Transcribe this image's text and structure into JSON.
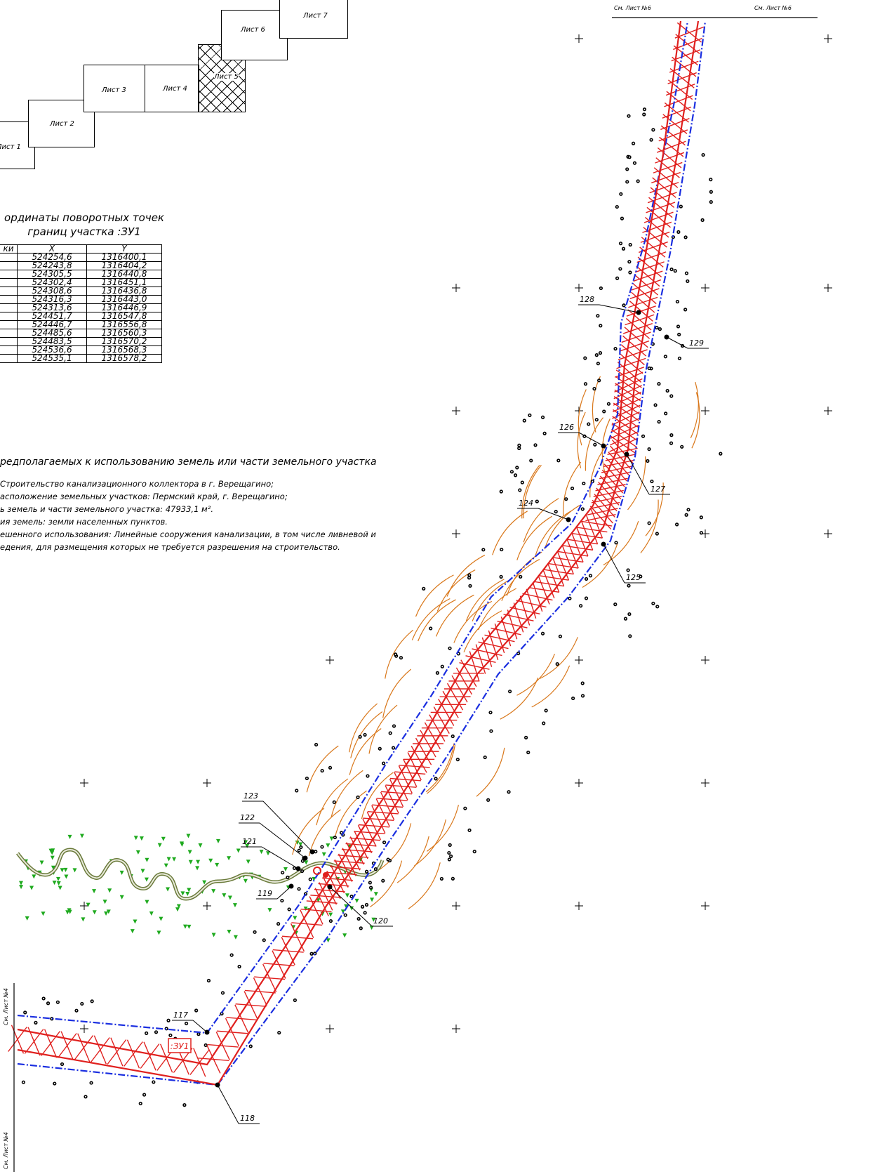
{
  "sheets": [
    {
      "label": "Лист 1"
    },
    {
      "label": "Лист 2"
    },
    {
      "label": "Лист 3"
    },
    {
      "label": "Лист 4"
    },
    {
      "label": "Лист 5"
    },
    {
      "label": "Лист 6"
    },
    {
      "label": "Лист 7"
    }
  ],
  "coords": {
    "title_line1": "ординаты поворотных точек",
    "title_line2": "границ участка :ЗУ1",
    "columns": [
      "ки",
      "X",
      "Y"
    ],
    "rows": [
      [
        "",
        "524254,6",
        "1316400,1"
      ],
      [
        "",
        "524243,8",
        "1316404,2"
      ],
      [
        "",
        "524305,5",
        "1316440,8"
      ],
      [
        "",
        "524302,4",
        "1316451,1"
      ],
      [
        "",
        "524308,6",
        "1316436,8"
      ],
      [
        "",
        "524316,3",
        "1316443,0"
      ],
      [
        "",
        "524313,6",
        "1316446,9"
      ],
      [
        "",
        "524451,7",
        "1316547,8"
      ],
      [
        "",
        "524446,7",
        "1316556,8"
      ],
      [
        "",
        "524485,6",
        "1316560,3"
      ],
      [
        "",
        "524483,5",
        "1316570,2"
      ],
      [
        "",
        "524536,6",
        "1316568,3"
      ],
      [
        "",
        "524535,1",
        "1316578,2"
      ]
    ]
  },
  "info": {
    "heading": "редполагаемых к использованию земель или части земельного участка",
    "lines": [
      "Строительство канализационного коллектора в г. Верещагино;",
      "асположение земельных участков: Пермский край, г. Верещагино;",
      "ь земель и части земельного участка: 47933,1 м².",
      "ия земель: земли населенных пунктов.",
      "ешенного использования: Линейные сооружения канализации, в том числе ливневой и",
      "едения, для размещения которых не требуется разрешения на строительство."
    ]
  },
  "map": {
    "top_ref_left": "См. Лист №6",
    "top_ref_right": "См. Лист №6",
    "left_ref_top": "См. Лист №4",
    "left_ref_bottom": "См. Лист №4",
    "parcel_label": ":ЗУ1",
    "points": [
      "117",
      "118",
      "119",
      "120",
      "121",
      "122",
      "123",
      "124",
      "125",
      "126",
      "127",
      "128",
      "129"
    ]
  },
  "colors": {
    "boundary": "#e0201e",
    "axis": "#1a2ee0",
    "contour": "#d9771a",
    "vegetation": "#1faa1f",
    "river": "#6a7a3a"
  }
}
